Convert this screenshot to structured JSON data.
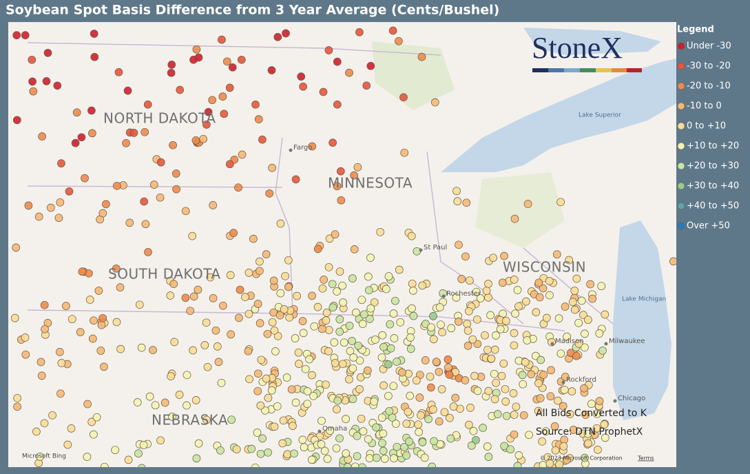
{
  "title": "Soybean Spot Basis Difference from 3 Year Average (Cents/Bushel)",
  "legend": {
    "title": "Legend",
    "items": [
      {
        "label": "Under -30",
        "color": "#d01f2e"
      },
      {
        "label": "-30 to -20",
        "color": "#e5563b"
      },
      {
        "label": "-20 to -10",
        "color": "#ee8b4c"
      },
      {
        "label": "-10 to 0",
        "color": "#f5b874"
      },
      {
        "label": "0 to +10",
        "color": "#fadd96"
      },
      {
        "label": "+10 to +20",
        "color": "#f3f4b2"
      },
      {
        "label": "+20 to +30",
        "color": "#c8e5a1"
      },
      {
        "label": "+30 to +40",
        "color": "#96cb8d"
      },
      {
        "label": "+40 to +50",
        "color": "#5ea6a5"
      },
      {
        "label": "Over +50",
        "color": "#2c7bb6"
      }
    ]
  },
  "logo": "StoneX",
  "map_labels": {
    "states": [
      "NORTH DAKOTA",
      "MINNESOTA",
      "SOUTH DAKOTA",
      "WISCONSIN",
      "NEBRASKA"
    ],
    "cities": [
      "Fargo",
      "St Paul",
      "Rochester",
      "Madison",
      "Milwaukee",
      "Rockford",
      "Chicago",
      "Omaha"
    ],
    "lakes": [
      "Lake Superior",
      "Lake Michigan"
    ]
  },
  "notes": [
    "All Bids Converted to K",
    "Source: DTN ProphetX"
  ],
  "attribution": {
    "provider": "Microsoft Bing",
    "copyright": "© 2023 Microsoft Corporation",
    "terms": "Terms"
  }
}
